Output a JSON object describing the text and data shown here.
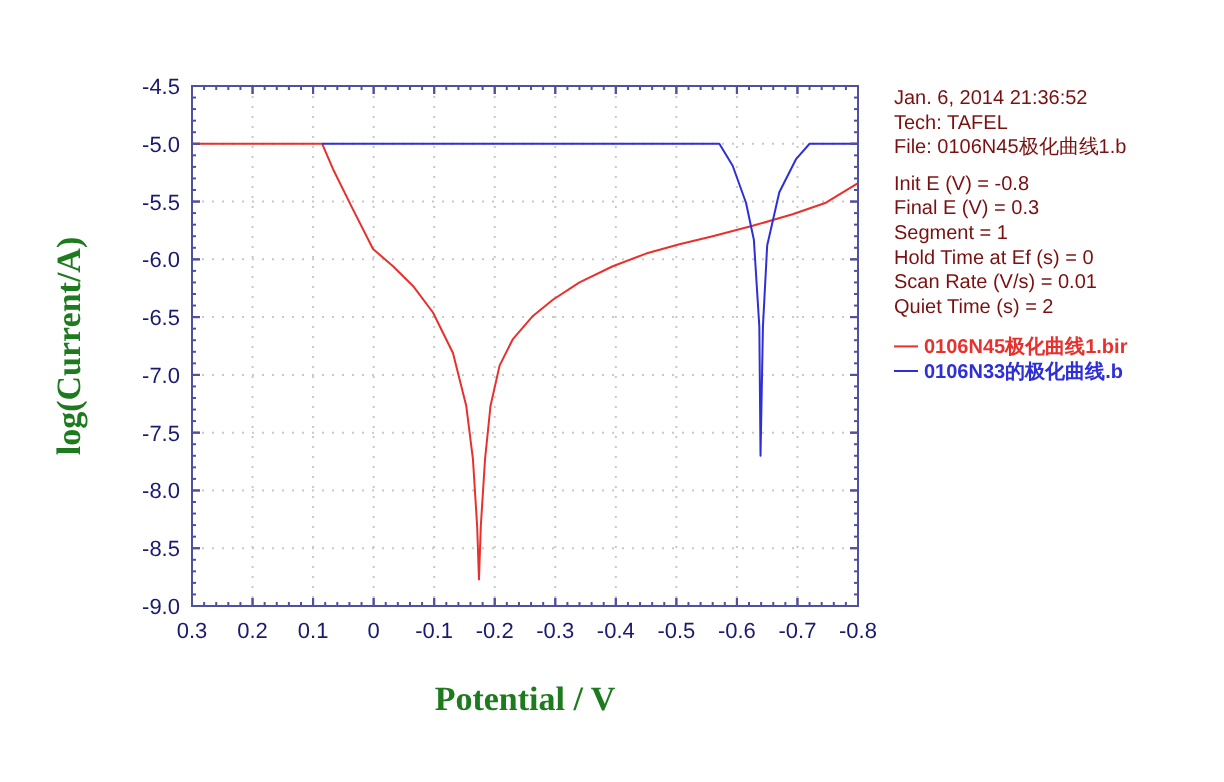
{
  "chart_data": {
    "type": "line",
    "xlabel": "Potential / V",
    "ylabel": "log(Current/A)",
    "xlim": [
      0.3,
      -0.8
    ],
    "xticks": [
      0.3,
      0.2,
      0.1,
      0,
      -0.1,
      -0.2,
      -0.3,
      -0.4,
      -0.5,
      -0.6,
      -0.7,
      -0.8
    ],
    "ylim": [
      -9.0,
      -4.5
    ],
    "yticks": [
      -4.5,
      {
        "value": -5.0,
        "label": "-5.0"
      },
      -5.5,
      {
        "value": -6.0,
        "label": "-6.0"
      },
      -6.5,
      {
        "value": -7.0,
        "label": "-7.0"
      },
      -7.5,
      {
        "value": -8.0,
        "label": "-8.0"
      },
      -8.5,
      {
        "value": -9.0,
        "label": "-9.0"
      }
    ],
    "grid": true,
    "legend": "right",
    "annotations": [
      "Jan. 6, 2014   21:36:52",
      "Tech: TAFEL",
      "File: 0106N45极化曲线1.b",
      "Init E (V) = -0.8",
      "Final E (V) = 0.3",
      "Segment = 1",
      "Hold Time at Ef (s) = 0",
      "Scan Rate (V/s) = 0.01",
      "Quiet Time (s) = 2"
    ],
    "series": [
      {
        "name": "0106N45极化曲线1.bir",
        "color": "#e8302c",
        "x": [
          0.3,
          0.085,
          0.067,
          0.034,
          0.001,
          -0.032,
          -0.065,
          -0.098,
          -0.131,
          -0.153,
          -0.164,
          -0.171,
          -0.174,
          -0.177,
          -0.184,
          -0.193,
          -0.208,
          -0.23,
          -0.263,
          -0.296,
          -0.34,
          -0.395,
          -0.45,
          -0.505,
          -0.56,
          -0.626,
          -0.692,
          -0.747,
          -0.8
        ],
        "values": [
          -5.0,
          -5.0,
          -5.22,
          -5.57,
          -5.91,
          -6.06,
          -6.23,
          -6.46,
          -6.81,
          -7.27,
          -7.73,
          -8.31,
          -8.77,
          -8.31,
          -7.73,
          -7.27,
          -6.92,
          -6.69,
          -6.49,
          -6.35,
          -6.2,
          -6.06,
          -5.95,
          -5.87,
          -5.8,
          -5.71,
          -5.61,
          -5.51,
          -5.34
        ]
      },
      {
        "name": "0106N33的极化曲线.b",
        "color": "#2f2fd8",
        "x": [
          0.085,
          -0.571,
          -0.593,
          -0.615,
          -0.628,
          -0.637,
          -0.639,
          -0.643,
          -0.65,
          -0.67,
          -0.698,
          -0.72,
          -0.8
        ],
        "values": [
          -5.0,
          -5.0,
          -5.19,
          -5.51,
          -5.83,
          -6.58,
          -7.7,
          -6.58,
          -5.88,
          -5.42,
          -5.13,
          -5.0,
          -5.0
        ]
      }
    ]
  }
}
